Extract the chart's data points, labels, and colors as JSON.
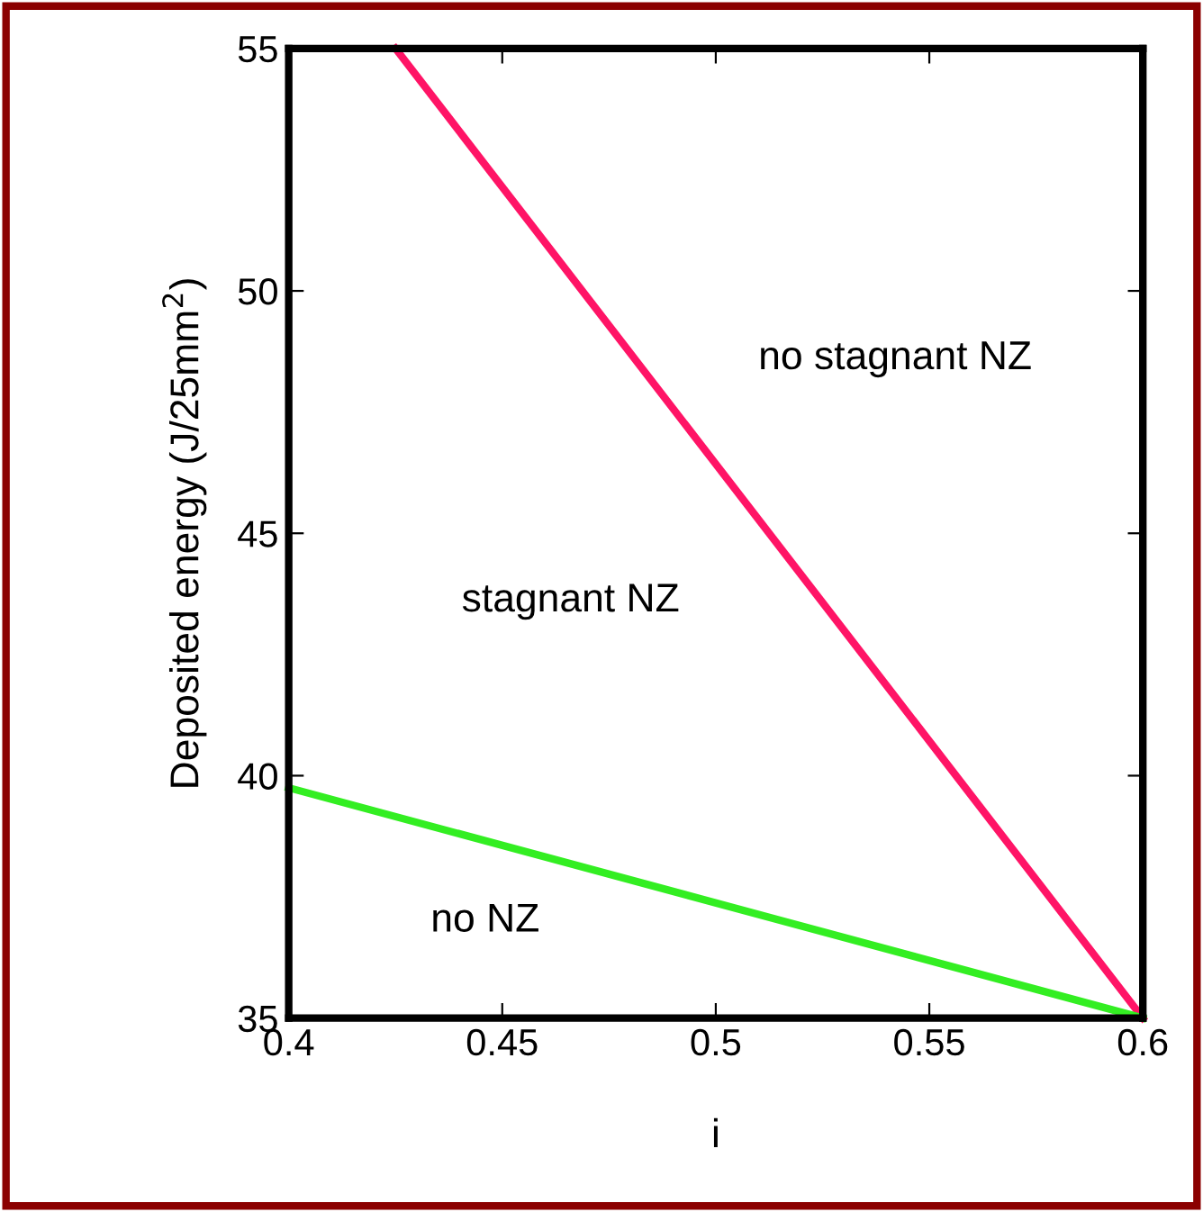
{
  "chart_data": {
    "type": "line",
    "xlabel": "i",
    "ylabel": "Deposited energy (J/25mm$^{2}$)",
    "series": [
      {
        "color": "#ff1466",
        "x": [
          0.425,
          0.6
        ],
        "values": [
          55,
          35
        ]
      },
      {
        "color": "#33ee22",
        "x": [
          0.4,
          0.6
        ],
        "values": [
          39.75,
          35
        ]
      }
    ],
    "xlim": [
      0.4,
      0.6
    ],
    "ylim": [
      35,
      55
    ],
    "xticks": [
      0.4,
      0.45,
      0.5,
      0.55,
      0.6
    ],
    "yticks": [
      35,
      40,
      45,
      50,
      55
    ],
    "annotations": [
      "no stagnant NZ",
      "stagnant NZ",
      "no NZ"
    ],
    "grid": false,
    "legend": false,
    "marker": "none",
    "line_style": "solid"
  }
}
